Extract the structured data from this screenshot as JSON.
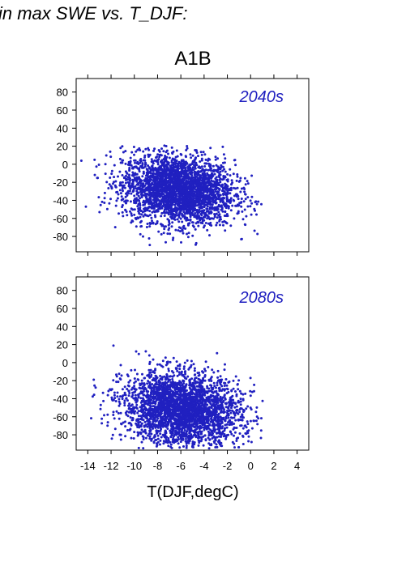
{
  "caption": "in max SWE vs. T_DJF:",
  "point_color": "#2020c0",
  "chart_data": {
    "type": "scatter",
    "title": "A1B",
    "xlabel": "T(DJF,degC)",
    "ylabel": "",
    "xlim": [
      -15,
      5
    ],
    "x_ticks": [
      -14,
      -12,
      -10,
      -8,
      -6,
      -4,
      -2,
      0,
      2,
      4
    ],
    "x_tick_labels": [
      "-14",
      "-12",
      "-10",
      "-8",
      "-6",
      "-4",
      "-2",
      "0",
      "2",
      "4"
    ],
    "panels": [
      {
        "label": "2040s",
        "ylim": [
          -97,
          95
        ],
        "y_ticks": [
          80,
          60,
          40,
          20,
          0,
          -20,
          -40,
          -60,
          -80
        ],
        "y_tick_labels": [
          "80",
          "60",
          "40",
          "20",
          "0",
          "-20",
          "-40",
          "-60",
          "-80"
        ],
        "cloud": {
          "x_center": -6.2,
          "x_spread": 2.4,
          "y_center": -28,
          "y_spread": 19,
          "x_min": -14.7,
          "x_max": 1.3,
          "y_min": -90,
          "y_max": 21,
          "n_points": 3000
        }
      },
      {
        "label": "2080s",
        "ylim": [
          -97,
          95
        ],
        "y_ticks": [
          80,
          60,
          40,
          20,
          0,
          -20,
          -40,
          -60,
          -80
        ],
        "y_tick_labels": [
          "80",
          "60",
          "40",
          "20",
          "0",
          "-20",
          "-40",
          "-60",
          "-80"
        ],
        "cloud": {
          "x_center": -5.9,
          "x_spread": 2.5,
          "y_center": -52,
          "y_spread": 20,
          "x_min": -14.8,
          "x_max": 1.3,
          "y_min": -95,
          "y_max": 22,
          "n_points": 3000
        }
      }
    ],
    "grid": false,
    "legend": "none"
  }
}
